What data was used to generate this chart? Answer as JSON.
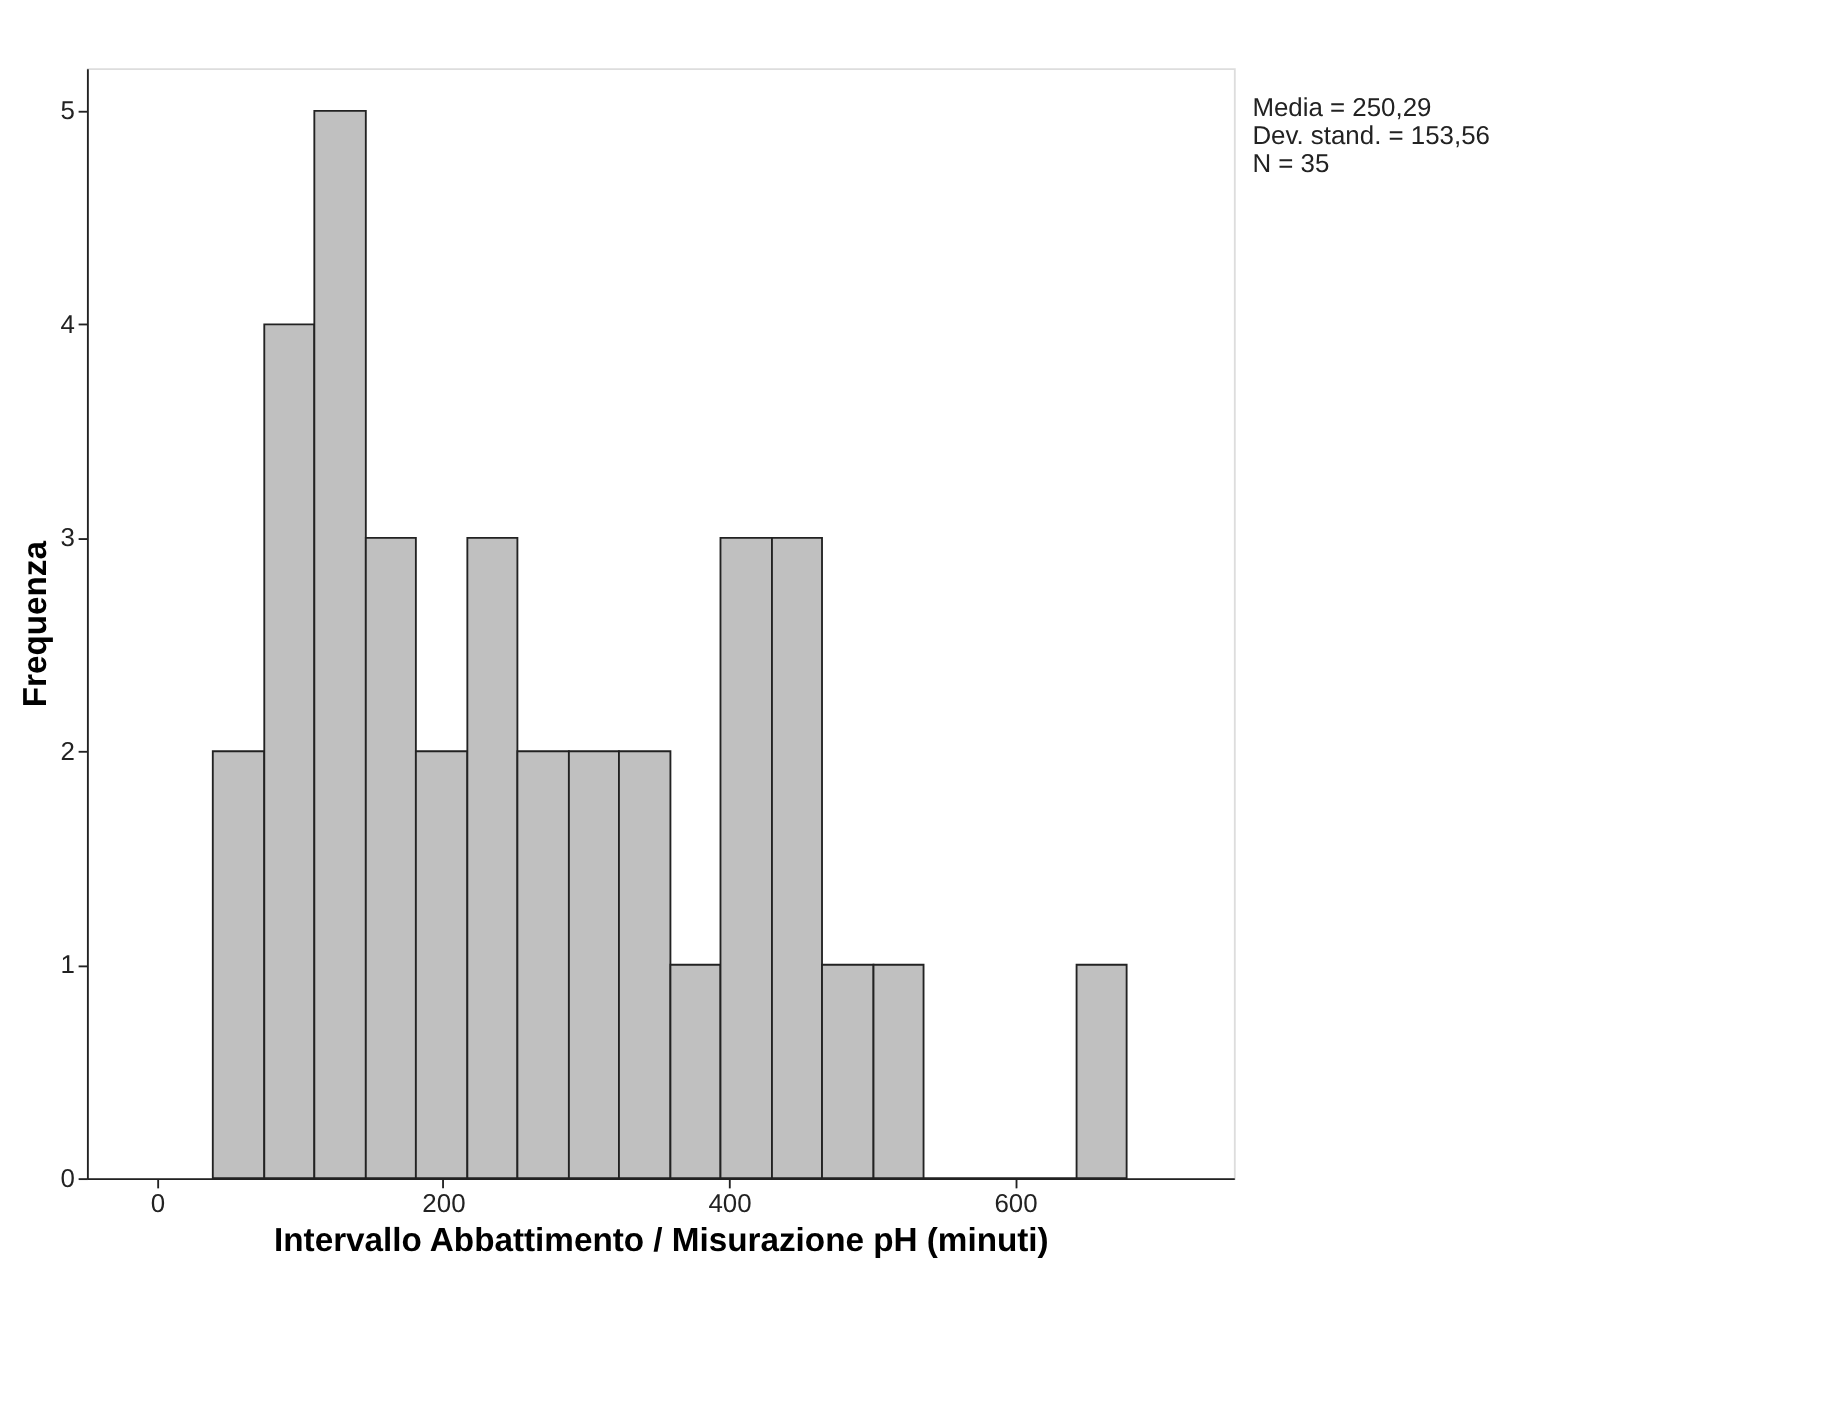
{
  "chart_data": {
    "type": "histogram",
    "xlabel": "Intervallo Abbattimento / Misurazione pH (minuti)",
    "ylabel": "Frequenza",
    "bins": [
      39,
      75,
      110,
      146,
      181,
      217,
      252,
      288,
      323,
      359,
      394,
      430,
      465,
      501,
      536,
      643,
      678
    ],
    "values": [
      2,
      4,
      5,
      3,
      2,
      3,
      2,
      2,
      2,
      1,
      3,
      3,
      1,
      1,
      0,
      1
    ],
    "color": "#c0c0c0",
    "xlim": [
      -49,
      753
    ],
    "xticks": [
      0,
      200,
      400,
      600
    ],
    "ylim": [
      0,
      5.2
    ],
    "yticks": [
      0,
      1,
      2,
      3,
      4,
      5
    ],
    "grid": false,
    "annotations": [
      "Media = 250,29",
      "Dev. stand. = 153,56",
      "N = 35"
    ]
  }
}
